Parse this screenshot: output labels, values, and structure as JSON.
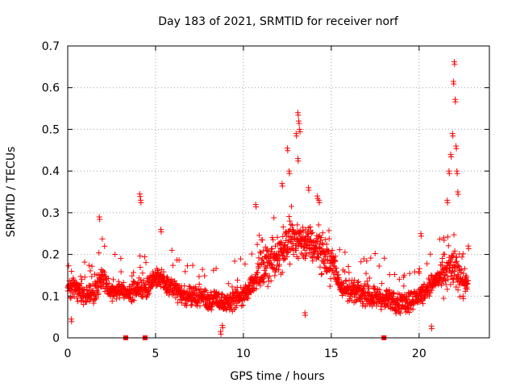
{
  "chart_data": {
    "type": "scatter",
    "title": "Day 183 of 2021, SRMTID for receiver norf",
    "xlabel": "GPS time / hours",
    "ylabel": "SRMTID / TECUs",
    "xlim": [
      0,
      24
    ],
    "ylim": [
      0,
      0.7
    ],
    "xticks": [
      0,
      5,
      10,
      15,
      20
    ],
    "xtick_labels": [
      "0",
      "5",
      "10",
      "15",
      "20"
    ],
    "yticks": [
      0,
      0.1,
      0.2,
      0.3,
      0.4,
      0.5,
      0.6,
      0.7
    ],
    "ytick_labels": [
      "0",
      "0.1",
      "0.2",
      "0.3",
      "0.4",
      "0.5",
      "0.6",
      "0.7"
    ],
    "grid": true,
    "marker": "+",
    "color": "#ff0000",
    "profile": [
      {
        "x": 0.0,
        "y": 0.12
      },
      {
        "x": 0.5,
        "y": 0.12
      },
      {
        "x": 1.0,
        "y": 0.1
      },
      {
        "x": 1.5,
        "y": 0.11
      },
      {
        "x": 2.0,
        "y": 0.14
      },
      {
        "x": 2.5,
        "y": 0.11
      },
      {
        "x": 3.0,
        "y": 0.12
      },
      {
        "x": 3.5,
        "y": 0.1
      },
      {
        "x": 4.0,
        "y": 0.12
      },
      {
        "x": 4.5,
        "y": 0.12
      },
      {
        "x": 5.0,
        "y": 0.15
      },
      {
        "x": 5.5,
        "y": 0.13
      },
      {
        "x": 6.0,
        "y": 0.12
      },
      {
        "x": 6.5,
        "y": 0.1
      },
      {
        "x": 7.0,
        "y": 0.1
      },
      {
        "x": 7.5,
        "y": 0.1
      },
      {
        "x": 8.0,
        "y": 0.09
      },
      {
        "x": 8.5,
        "y": 0.09
      },
      {
        "x": 9.0,
        "y": 0.08
      },
      {
        "x": 9.5,
        "y": 0.09
      },
      {
        "x": 10.0,
        "y": 0.1
      },
      {
        "x": 10.5,
        "y": 0.13
      },
      {
        "x": 11.0,
        "y": 0.16
      },
      {
        "x": 11.5,
        "y": 0.18
      },
      {
        "x": 12.0,
        "y": 0.2
      },
      {
        "x": 12.5,
        "y": 0.23
      },
      {
        "x": 13.0,
        "y": 0.24
      },
      {
        "x": 13.5,
        "y": 0.23
      },
      {
        "x": 14.0,
        "y": 0.22
      },
      {
        "x": 14.5,
        "y": 0.2
      },
      {
        "x": 15.0,
        "y": 0.18
      },
      {
        "x": 15.5,
        "y": 0.13
      },
      {
        "x": 16.0,
        "y": 0.11
      },
      {
        "x": 16.5,
        "y": 0.11
      },
      {
        "x": 17.0,
        "y": 0.1
      },
      {
        "x": 17.5,
        "y": 0.1
      },
      {
        "x": 18.0,
        "y": 0.09
      },
      {
        "x": 18.5,
        "y": 0.09
      },
      {
        "x": 19.0,
        "y": 0.08
      },
      {
        "x": 19.5,
        "y": 0.09
      },
      {
        "x": 20.0,
        "y": 0.1
      },
      {
        "x": 20.5,
        "y": 0.12
      },
      {
        "x": 21.0,
        "y": 0.14
      },
      {
        "x": 21.5,
        "y": 0.16
      },
      {
        "x": 22.0,
        "y": 0.17
      },
      {
        "x": 22.5,
        "y": 0.14
      },
      {
        "x": 22.8,
        "y": 0.13
      }
    ],
    "spread": 0.035,
    "spikes": [
      {
        "x": 1.8,
        "y": 0.29
      },
      {
        "x": 4.1,
        "y": 0.345
      },
      {
        "x": 4.15,
        "y": 0.33
      },
      {
        "x": 5.3,
        "y": 0.26
      },
      {
        "x": 10.7,
        "y": 0.32
      },
      {
        "x": 12.2,
        "y": 0.37
      },
      {
        "x": 12.5,
        "y": 0.455
      },
      {
        "x": 12.6,
        "y": 0.4
      },
      {
        "x": 13.0,
        "y": 0.49
      },
      {
        "x": 13.1,
        "y": 0.54
      },
      {
        "x": 13.15,
        "y": 0.52
      },
      {
        "x": 13.2,
        "y": 0.5
      },
      {
        "x": 13.1,
        "y": 0.43
      },
      {
        "x": 13.7,
        "y": 0.36
      },
      {
        "x": 14.2,
        "y": 0.34
      },
      {
        "x": 14.3,
        "y": 0.33
      },
      {
        "x": 13.5,
        "y": 0.06
      },
      {
        "x": 8.7,
        "y": 0.015
      },
      {
        "x": 8.8,
        "y": 0.03
      },
      {
        "x": 0.2,
        "y": 0.045
      },
      {
        "x": 20.7,
        "y": 0.028
      },
      {
        "x": 20.1,
        "y": 0.25
      },
      {
        "x": 21.4,
        "y": 0.24
      },
      {
        "x": 21.6,
        "y": 0.33
      },
      {
        "x": 21.7,
        "y": 0.4
      },
      {
        "x": 21.8,
        "y": 0.44
      },
      {
        "x": 21.9,
        "y": 0.49
      },
      {
        "x": 21.95,
        "y": 0.615
      },
      {
        "x": 22.0,
        "y": 0.662
      },
      {
        "x": 22.05,
        "y": 0.572
      },
      {
        "x": 22.1,
        "y": 0.46
      },
      {
        "x": 22.15,
        "y": 0.4
      },
      {
        "x": 22.2,
        "y": 0.35
      },
      {
        "x": 22.5,
        "y": 0.1
      },
      {
        "x": 22.8,
        "y": 0.22
      }
    ],
    "zero_markers": [
      3.3,
      4.4,
      18.0
    ]
  }
}
